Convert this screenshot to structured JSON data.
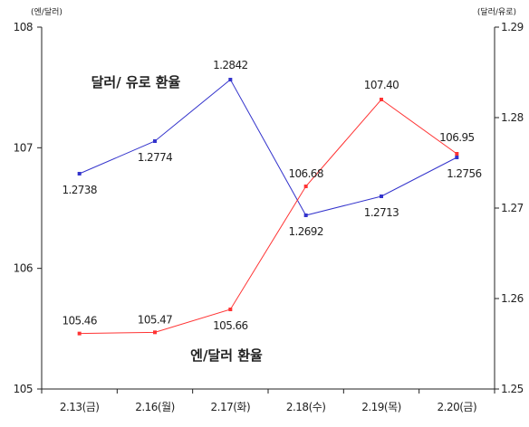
{
  "chart_data": {
    "type": "line",
    "categories": [
      "2.13(금)",
      "2.16(월)",
      "2.17(화)",
      "2.18(수)",
      "2.19(목)",
      "2.20(금)"
    ],
    "units": {
      "left": "(엔/달러)",
      "right": "(달러/유로)"
    },
    "left_axis": {
      "ticks": [
        "105",
        "106",
        "107",
        "108"
      ],
      "range": [
        105,
        108
      ]
    },
    "right_axis": {
      "ticks": [
        "1.25",
        "1.26",
        "1.27",
        "1.28",
        "1.29"
      ],
      "range": [
        1.25,
        1.29
      ]
    },
    "series": [
      {
        "name": "달러/ 유로 환율",
        "axis": "right",
        "color": "#3333cc",
        "values": [
          1.2738,
          1.2774,
          1.2842,
          1.2692,
          1.2713,
          1.2756
        ],
        "labels": [
          "1.2738",
          "1.2774",
          "1.2842",
          "1.2692",
          "1.2713",
          "1.2756"
        ]
      },
      {
        "name": "엔/달러 환율",
        "axis": "left",
        "color": "#ff3333",
        "values": [
          105.46,
          105.47,
          105.66,
          106.68,
          107.4,
          106.95
        ],
        "labels": [
          "105.46",
          "105.47",
          "105.66",
          "106.68",
          "107.40",
          "106.95"
        ]
      }
    ],
    "grid": false,
    "legend": "inline"
  }
}
